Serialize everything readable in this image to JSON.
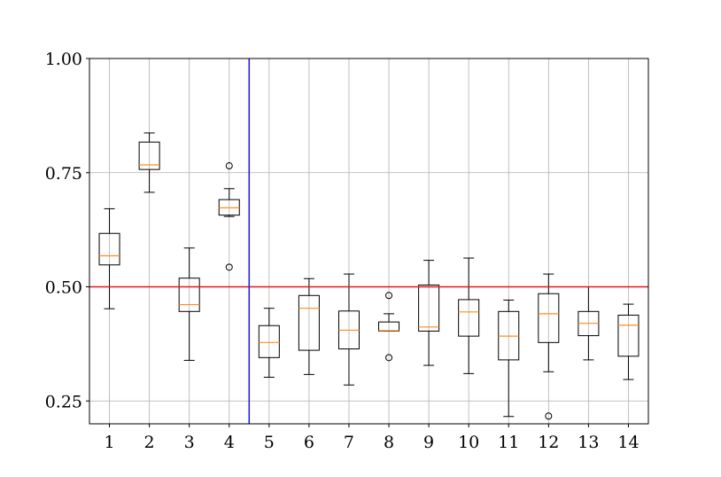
{
  "chart_data": {
    "type": "box",
    "categories": [
      "1",
      "2",
      "3",
      "4",
      "5",
      "6",
      "7",
      "8",
      "9",
      "10",
      "11",
      "12",
      "13",
      "14"
    ],
    "ylim": [
      0.2,
      1.0
    ],
    "yticks": [
      0.25,
      0.5,
      0.75,
      1.0
    ],
    "ytick_labels": [
      "0.25",
      "0.50",
      "0.75",
      "1.00"
    ],
    "grid": true,
    "reference_hline": {
      "y": 0.5,
      "color": "#e8141a"
    },
    "reference_vline": {
      "x": 4.5,
      "color": "#2323d8"
    },
    "box_color": "#000000",
    "median_color": "#ff8c1a",
    "boxes": [
      {
        "label": "1",
        "whisker_low": 0.452,
        "q1": 0.548,
        "median": 0.568,
        "q3": 0.617,
        "whisker_high": 0.671,
        "outliers": []
      },
      {
        "label": "2",
        "whisker_low": 0.707,
        "q1": 0.757,
        "median": 0.767,
        "q3": 0.817,
        "whisker_high": 0.837,
        "outliers": []
      },
      {
        "label": "3",
        "whisker_low": 0.339,
        "q1": 0.446,
        "median": 0.461,
        "q3": 0.519,
        "whisker_high": 0.585,
        "outliers": []
      },
      {
        "label": "4",
        "whisker_low": 0.654,
        "q1": 0.657,
        "median": 0.673,
        "q3": 0.691,
        "whisker_high": 0.715,
        "outliers": [
          0.765,
          0.543
        ]
      },
      {
        "label": "5",
        "whisker_low": 0.302,
        "q1": 0.345,
        "median": 0.378,
        "q3": 0.415,
        "whisker_high": 0.453,
        "outliers": []
      },
      {
        "label": "6",
        "whisker_low": 0.308,
        "q1": 0.361,
        "median": 0.453,
        "q3": 0.481,
        "whisker_high": 0.518,
        "outliers": []
      },
      {
        "label": "7",
        "whisker_low": 0.285,
        "q1": 0.364,
        "median": 0.405,
        "q3": 0.447,
        "whisker_high": 0.528,
        "outliers": []
      },
      {
        "label": "8",
        "whisker_low": 0.403,
        "q1": 0.403,
        "median": 0.404,
        "q3": 0.423,
        "whisker_high": 0.441,
        "outliers": [
          0.481,
          0.345
        ]
      },
      {
        "label": "9",
        "whisker_low": 0.328,
        "q1": 0.403,
        "median": 0.412,
        "q3": 0.504,
        "whisker_high": 0.558,
        "outliers": []
      },
      {
        "label": "10",
        "whisker_low": 0.31,
        "q1": 0.392,
        "median": 0.445,
        "q3": 0.472,
        "whisker_high": 0.563,
        "outliers": []
      },
      {
        "label": "11",
        "whisker_low": 0.216,
        "q1": 0.34,
        "median": 0.392,
        "q3": 0.446,
        "whisker_high": 0.471,
        "outliers": []
      },
      {
        "label": "12",
        "whisker_low": 0.314,
        "q1": 0.378,
        "median": 0.441,
        "q3": 0.485,
        "whisker_high": 0.528,
        "outliers": [
          0.217
        ]
      },
      {
        "label": "13",
        "whisker_low": 0.34,
        "q1": 0.393,
        "median": 0.42,
        "q3": 0.446,
        "whisker_high": 0.5,
        "outliers": []
      },
      {
        "label": "14",
        "whisker_low": 0.297,
        "q1": 0.348,
        "median": 0.416,
        "q3": 0.438,
        "whisker_high": 0.462,
        "outliers": []
      }
    ]
  }
}
